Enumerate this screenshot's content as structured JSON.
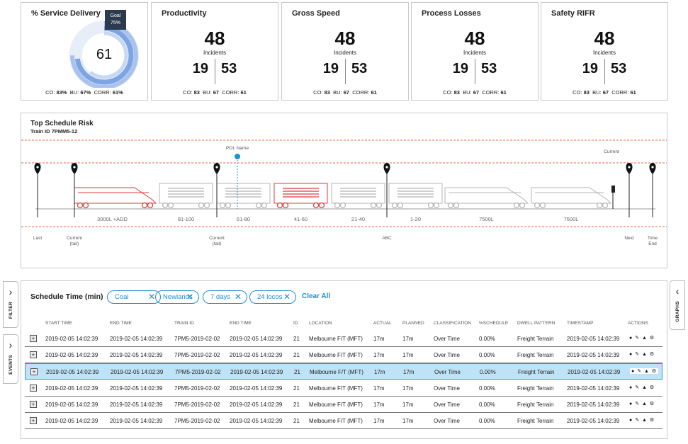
{
  "kpis": [
    {
      "title": "% Service Delivery",
      "value": "61",
      "tooltip_label": "Goal",
      "tooltip_value": "75%",
      "foot": {
        "co": "83%",
        "bu": "67%",
        "corr": "61%"
      },
      "goal_fraction": 0.75,
      "value_fraction": 0.61
    },
    {
      "title": "Productivity",
      "big": "48",
      "sub": "Incidents",
      "left": "19",
      "right": "53",
      "foot": {
        "co": "83",
        "bu": "67",
        "corr": "61"
      }
    },
    {
      "title": "Gross Speed",
      "big": "48",
      "sub": "Incidents",
      "left": "19",
      "right": "53",
      "foot": {
        "co": "83",
        "bu": "67",
        "corr": "61"
      }
    },
    {
      "title": "Process Losses",
      "big": "48",
      "sub": "Incidents",
      "left": "19",
      "right": "53",
      "foot": {
        "co": "83",
        "bu": "67",
        "corr": "61"
      }
    },
    {
      "title": "Safety RIFR",
      "big": "48",
      "sub": "Incidents",
      "left": "19",
      "right": "53",
      "foot": {
        "co": "83",
        "bu": "67",
        "corr": "61"
      }
    }
  ],
  "foot_labels": {
    "co": "CO:",
    "bu": "BU:",
    "corr": "CORR:"
  },
  "risk": {
    "title": "Top Schedule Risk",
    "subtitle": "Train ID 7PMM5-12",
    "poi_label": "POI: Name",
    "current_label": "Current",
    "car_labels": [
      "3000L +ADD",
      "81-100",
      "61-80",
      "41-60",
      "21-40",
      "1-20",
      "7500L",
      "7500L"
    ],
    "markers": [
      "Last",
      "Current\n(tail)",
      "Current\n(tail)",
      "ABC",
      "Next",
      "Time\nEnd"
    ],
    "colors": {
      "risk": "#e03b3b",
      "normal": "#b5b5b5",
      "dash": "#e86a3a",
      "poi": "#1f8fcf"
    }
  },
  "side_tabs": {
    "filter": "FILTER",
    "events": "EVENTS",
    "graphs": "GRAPHS"
  },
  "schedule": {
    "title": "Schedule Time (min)",
    "chips": [
      "Coal",
      "Newlands",
      "7 days",
      "24 locos"
    ],
    "clear_all": "Clear All",
    "columns": [
      "Start Time",
      "End Time",
      "Train ID",
      "End Time",
      "ID",
      "Location",
      "Actual",
      "Planned",
      "Classification",
      "%Schedule",
      "Dwell Pattern",
      "Timestamp",
      "Actions"
    ],
    "rows": [
      [
        "2019-02-05  14:02:39",
        "2019-02-05  14:02:39",
        "7PM5-2019-02-02",
        "2019-02-05  14:02:39",
        "21",
        "Melbourne F/T (MFT)",
        "17m",
        "17m",
        "Over Time",
        "0.00%",
        "Freight Terrain",
        "2019-02-05  14:02:39"
      ],
      [
        "2019-02-05  14:02:39",
        "2019-02-05  14:02:39",
        "7PM5-2019-02-02",
        "2019-02-05  14:02:39",
        "21",
        "Melbourne F/T (MFT)",
        "17m",
        "17m",
        "Over Time",
        "0.00%",
        "Freight Terrain",
        "2019-02-05  14:02:39"
      ],
      [
        "2019-02-05  14:02:39",
        "2019-02-05  14:02:39",
        "7PM5-2019-02-02",
        "2019-02-05  14:02:39",
        "21",
        "Melbourne F/T (MFT)",
        "17m",
        "17m",
        "Over Time",
        "0.00%",
        "Freight Terrain",
        "2019-02-05  14:02:39"
      ],
      [
        "2019-02-05  14:02:39",
        "2019-02-05  14:02:39",
        "7PM5-2019-02-02",
        "2019-02-05  14:02:39",
        "21",
        "Melbourne F/T (MFT)",
        "17m",
        "17m",
        "Over Time",
        "0.00%",
        "Freight Terrain",
        "2019-02-05  14:02:39"
      ],
      [
        "2019-02-05  14:02:39",
        "2019-02-05  14:02:39",
        "7PM5-2019-02-02",
        "2019-02-05  14:02:39",
        "21",
        "Melbourne F/T (MFT)",
        "17m",
        "17m",
        "Over Time",
        "0.00%",
        "Freight Terrain",
        "2019-02-05  14:02:39"
      ],
      [
        "2019-02-05  14:02:39",
        "2019-02-05  14:02:39",
        "7PM5-2019-02-02",
        "2019-02-05  14:02:39",
        "21",
        "Melbourne F/T (MFT)",
        "17m",
        "17m",
        "Over Time",
        "0.00%",
        "Freight Terrain",
        "2019-02-05  14:02:39"
      ]
    ],
    "selected_row": 2,
    "actions_icons": [
      "view-icon",
      "edit-icon",
      "person-icon",
      "settings-icon"
    ]
  }
}
